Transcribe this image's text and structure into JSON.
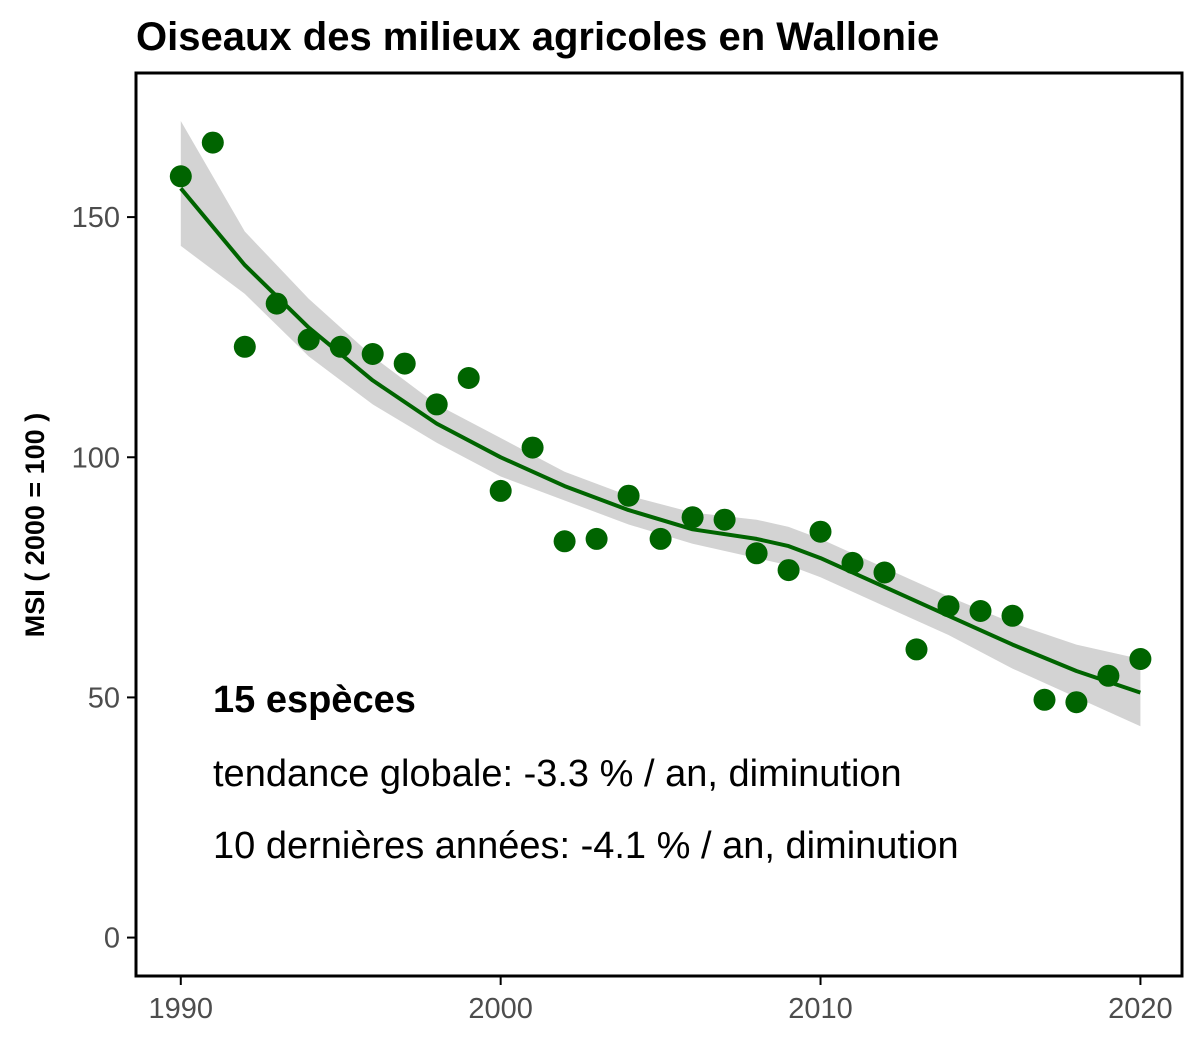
{
  "chart_data": {
    "type": "scatter",
    "title": "Oiseaux des milieux agricoles en Wallonie",
    "xlabel": "",
    "ylabel": "MSI ( 2000 = 100 )",
    "xlim": [
      1988.6,
      2021.3
    ],
    "ylim": [
      -8,
      180
    ],
    "x_ticks": [
      1990,
      2000,
      2010,
      2020
    ],
    "y_ticks": [
      0,
      50,
      100,
      150
    ],
    "grid": false,
    "colors": {
      "points": "#006400",
      "trend": "#006400",
      "band": "#d3d3d3",
      "axis": "#000000"
    },
    "series": [
      {
        "name": "MSI",
        "x": [
          1990,
          1991,
          1992,
          1993,
          1994,
          1995,
          1996,
          1997,
          1998,
          1999,
          2000,
          2001,
          2002,
          2003,
          2004,
          2005,
          2006,
          2007,
          2008,
          2009,
          2010,
          2011,
          2012,
          2013,
          2014,
          2015,
          2016,
          2017,
          2018,
          2019,
          2020
        ],
        "y": [
          158.5,
          165.5,
          123,
          132,
          124.5,
          123,
          121.5,
          119.5,
          111,
          116.5,
          93,
          102,
          82.5,
          83,
          92,
          83,
          87.5,
          87,
          80,
          76.5,
          84.5,
          78,
          76,
          60,
          69,
          68,
          67,
          49.5,
          49,
          54.5,
          58
        ]
      }
    ],
    "trend": {
      "name": "lissage",
      "x": [
        1990,
        1992,
        1994,
        1996,
        1998,
        2000,
        2002,
        2004,
        2006,
        2008,
        2009,
        2010,
        2012,
        2014,
        2016,
        2018,
        2020
      ],
      "y": [
        156,
        140,
        127,
        116,
        107,
        100,
        94,
        89,
        85,
        83,
        81.5,
        79,
        73,
        67,
        61,
        55.5,
        51
      ],
      "lower": [
        144,
        134,
        121,
        111,
        103,
        96,
        91,
        86,
        82,
        79,
        77.5,
        75,
        69,
        63,
        56,
        50,
        44
      ],
      "upper": [
        170,
        147,
        133,
        121,
        111,
        104,
        97,
        92,
        88.5,
        87,
        85.5,
        83,
        77,
        71,
        65.5,
        61,
        58
      ]
    },
    "annotations": {
      "line1": "15 espèces",
      "line2": "tendance globale: -3.3 % / an, diminution",
      "line3": "10 dernières années: -4.1 % / an, diminution"
    }
  }
}
